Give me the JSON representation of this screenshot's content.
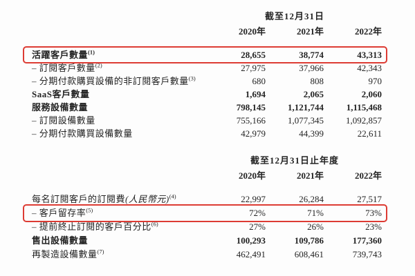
{
  "page": {
    "background": "#fdfdfd",
    "text_color": "#242424",
    "highlight_border_color": "#dd3b33"
  },
  "sections": [
    {
      "period_header": "截至12月31日",
      "years": [
        "2020年",
        "2021年",
        "2022年"
      ],
      "rows": [
        {
          "label": "活躍客戶數量",
          "sup": "(1)",
          "bold": true,
          "highlight": true,
          "values": [
            "28,655",
            "38,774",
            "43,313"
          ]
        },
        {
          "label": "– 訂閱客戶數量",
          "sup": "(2)",
          "bold": false,
          "highlight": false,
          "values": [
            "27,975",
            "37,966",
            "42,343"
          ]
        },
        {
          "label": "– 分期付款購買設備的非訂閱客戶數量",
          "sup": "(3)",
          "bold": false,
          "highlight": false,
          "values": [
            "680",
            "808",
            "970"
          ]
        },
        {
          "label": "SaaS客戶數量",
          "sup": "",
          "bold": true,
          "highlight": false,
          "values": [
            "1,694",
            "2,065",
            "2,060"
          ]
        },
        {
          "label": "服務設備數量",
          "sup": "",
          "bold": true,
          "highlight": false,
          "values": [
            "798,145",
            "1,121,744",
            "1,115,468"
          ]
        },
        {
          "label": "– 訂閱設備數量",
          "sup": "",
          "bold": false,
          "highlight": false,
          "values": [
            "755,166",
            "1,077,345",
            "1,092,857"
          ]
        },
        {
          "label": "– 分期付款購買設備數量",
          "sup": "",
          "bold": false,
          "highlight": false,
          "values": [
            "42,979",
            "44,399",
            "22,611"
          ]
        }
      ]
    },
    {
      "period_header": "截至12月31日止年度",
      "years": [
        "2020年",
        "2021年",
        "2022年"
      ],
      "rows": [
        {
          "label": "每名訂閱客戶的訂閱費",
          "label_italic": "(人民幣元)",
          "sup": "(4)",
          "bold": false,
          "highlight": false,
          "values": [
            "22,997",
            "26,284",
            "27,517"
          ]
        },
        {
          "label": "– 客戶留存率",
          "sup": "(5)",
          "bold": false,
          "highlight": true,
          "values": [
            "72%",
            "71%",
            "73%"
          ]
        },
        {
          "label": "– 提前終止訂閱的客戶百分比",
          "sup": "(6)",
          "bold": false,
          "highlight": false,
          "values": [
            "27%",
            "26%",
            "23%"
          ]
        },
        {
          "label": "售出設備數量",
          "sup": "",
          "bold": true,
          "highlight": false,
          "values": [
            "100,293",
            "109,786",
            "177,360"
          ]
        },
        {
          "label": "再製造設備數量",
          "sup": "(7)",
          "bold": false,
          "highlight": false,
          "values": [
            "462,491",
            "608,461",
            "739,743"
          ]
        }
      ]
    }
  ]
}
